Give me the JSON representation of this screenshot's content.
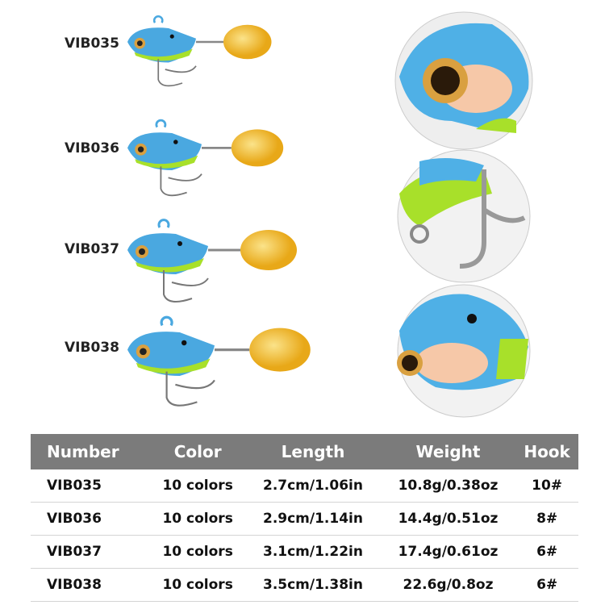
{
  "lures": [
    {
      "label": "VIB035"
    },
    {
      "label": "VIB036"
    },
    {
      "label": "VIB037"
    },
    {
      "label": "VIB038"
    }
  ],
  "colors": {
    "body": "#4aa8e0",
    "belly": "#cfe9f5",
    "accent": "#a8e02a",
    "blade": "#f2c230",
    "header": "#7b7b7b"
  },
  "table": {
    "headers": [
      "Number",
      "Color",
      "Length",
      "Weight",
      "Hook"
    ],
    "rows": [
      [
        "VIB035",
        "10 colors",
        "2.7cm/1.06in",
        "10.8g/0.38oz",
        "10#"
      ],
      [
        "VIB036",
        "10 colors",
        "2.9cm/1.14in",
        "14.4g/0.51oz",
        "8#"
      ],
      [
        "VIB037",
        "10 colors",
        "3.1cm/1.22in",
        "17.4g/0.61oz",
        "6#"
      ],
      [
        "VIB038",
        "10 colors",
        "3.5cm/1.38in",
        "22.6g/0.8oz",
        "6#"
      ]
    ]
  }
}
